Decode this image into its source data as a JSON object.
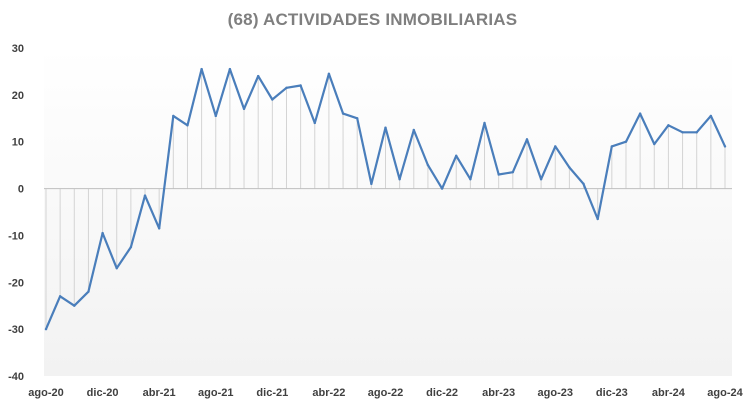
{
  "chart_data": {
    "type": "line",
    "title": "(68) ACTIVIDADES INMOBILIARIAS",
    "xlabel": "",
    "ylabel": "",
    "ylim": [
      -40,
      30
    ],
    "yticks": [
      30,
      20,
      10,
      0,
      -10,
      -20,
      -30,
      -40
    ],
    "x_tick_labels": [
      "ago-20",
      "dic-20",
      "abr-21",
      "ago-21",
      "dic-21",
      "abr-22",
      "ago-22",
      "dic-22",
      "abr-23",
      "ago-23",
      "dic-23",
      "abr-24",
      "ago-24"
    ],
    "x": [
      "ago-20",
      "sep-20",
      "oct-20",
      "nov-20",
      "dic-20",
      "ene-21",
      "feb-21",
      "mar-21",
      "abr-21",
      "may-21",
      "jun-21",
      "jul-21",
      "ago-21",
      "sep-21",
      "oct-21",
      "nov-21",
      "dic-21",
      "ene-22",
      "feb-22",
      "mar-22",
      "abr-22",
      "may-22",
      "jun-22",
      "jul-22",
      "ago-22",
      "sep-22",
      "oct-22",
      "nov-22",
      "dic-22",
      "ene-23",
      "feb-23",
      "mar-23",
      "abr-23",
      "may-23",
      "jun-23",
      "jul-23",
      "ago-23",
      "sep-23",
      "oct-23",
      "nov-23",
      "dic-23",
      "ene-24",
      "feb-24",
      "mar-24",
      "abr-24",
      "may-24",
      "jun-24",
      "jul-24",
      "ago-24"
    ],
    "series": [
      {
        "values": [
          -30,
          -23,
          -25,
          -22,
          -9.5,
          -17,
          -12.5,
          -1.5,
          -8.5,
          15.5,
          13.5,
          25.5,
          15.5,
          25.5,
          17,
          24,
          19,
          21.5,
          22,
          14,
          24.5,
          16,
          15,
          1,
          13,
          2,
          12.5,
          5,
          0,
          7,
          2,
          14,
          3,
          3.5,
          10.5,
          2,
          9,
          4.5,
          1,
          -6.5,
          9,
          10,
          16,
          9.5,
          13.5,
          12,
          12,
          15.5,
          9
        ]
      }
    ],
    "colors": {
      "line": "#4a7ebb",
      "drop_lines": "#d4d4d4",
      "title": "#7f7f7f",
      "axis_text": "#404040"
    },
    "grid": false,
    "legend": "none"
  }
}
